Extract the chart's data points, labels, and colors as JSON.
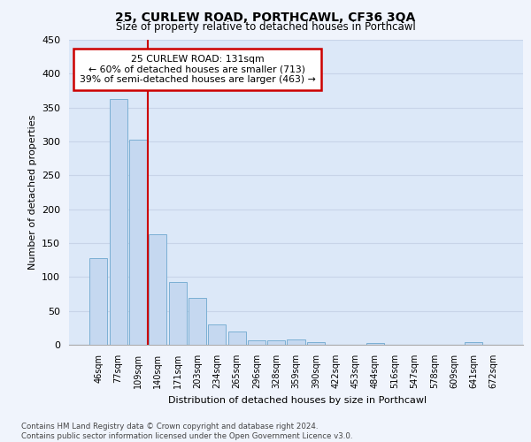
{
  "title1": "25, CURLEW ROAD, PORTHCAWL, CF36 3QA",
  "title2": "Size of property relative to detached houses in Porthcawl",
  "xlabel": "Distribution of detached houses by size in Porthcawl",
  "ylabel": "Number of detached properties",
  "bar_labels": [
    "46sqm",
    "77sqm",
    "109sqm",
    "140sqm",
    "171sqm",
    "203sqm",
    "234sqm",
    "265sqm",
    "296sqm",
    "328sqm",
    "359sqm",
    "390sqm",
    "422sqm",
    "453sqm",
    "484sqm",
    "516sqm",
    "547sqm",
    "578sqm",
    "609sqm",
    "641sqm",
    "672sqm"
  ],
  "bar_values": [
    128,
    363,
    303,
    163,
    93,
    69,
    30,
    19,
    7,
    6,
    8,
    4,
    0,
    0,
    3,
    0,
    0,
    0,
    0,
    4,
    0
  ],
  "bar_color": "#c5d8f0",
  "bar_edge_color": "#7bafd4",
  "ylim": [
    0,
    450
  ],
  "yticks": [
    0,
    50,
    100,
    150,
    200,
    250,
    300,
    350,
    400,
    450
  ],
  "red_line_color": "#cc0000",
  "annotation_box_color": "#ffffff",
  "annotation_box_edge_color": "#cc0000",
  "annotation_box_text": "25 CURLEW ROAD: 131sqm\n← 60% of detached houses are smaller (713)\n39% of semi-detached houses are larger (463) →",
  "grid_color": "#c8d4e8",
  "bg_color": "#dce8f8",
  "footnote": "Contains HM Land Registry data © Crown copyright and database right 2024.\nContains public sector information licensed under the Open Government Licence v3.0.",
  "fig_bg": "#f0f4fc"
}
